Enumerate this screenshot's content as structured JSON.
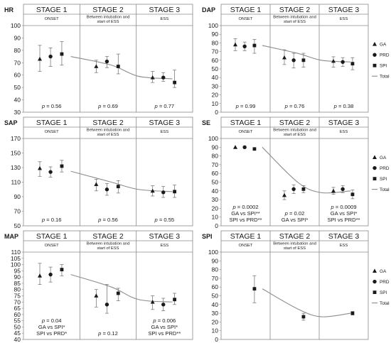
{
  "colors": {
    "marker": "#1a1a1a",
    "total_line": "#8c8c8c",
    "frame": "#8a8a8a",
    "error_bar": "#6a6a6a"
  },
  "stage_labels": [
    "STAGE 1",
    "STAGE 2",
    "STAGE 3"
  ],
  "stage_sublabels": [
    "ONSET",
    "Between intubation and start of ESS",
    "ESS"
  ],
  "legend_items": [
    {
      "marker": "triangle",
      "label": "GA"
    },
    {
      "marker": "circle",
      "label": "PRD"
    },
    {
      "marker": "square",
      "label": "SPI"
    },
    {
      "marker": "line",
      "label": "Total"
    }
  ],
  "chart_data": [
    {
      "id": "HR",
      "type": "line",
      "ylabel": "HR",
      "ylim": [
        30,
        100
      ],
      "yticks": [
        30,
        40,
        50,
        60,
        70,
        80,
        90,
        100
      ],
      "categories": [
        "STAGE 1",
        "STAGE 2",
        "STAGE 3"
      ],
      "series": [
        {
          "name": "GA",
          "marker": "triangle",
          "values": [
            73,
            67,
            58
          ],
          "err_low": [
            63,
            62,
            54
          ],
          "err_high": [
            84,
            72,
            63
          ]
        },
        {
          "name": "PRD",
          "marker": "circle",
          "values": [
            75,
            71,
            58
          ],
          "err_low": [
            67,
            66,
            55
          ],
          "err_high": [
            82,
            75,
            62
          ]
        },
        {
          "name": "SPI",
          "marker": "square",
          "values": [
            77,
            67,
            54
          ],
          "err_low": [
            68,
            61,
            50
          ],
          "err_high": [
            87,
            77,
            64
          ]
        }
      ],
      "total": [
        75,
        68,
        59,
        57
      ],
      "pvalues": [
        [
          "p = 0.56"
        ],
        [
          "p = 0.69"
        ],
        [
          "p = 0.77"
        ]
      ],
      "show_legend": false
    },
    {
      "id": "DAP",
      "type": "line",
      "ylabel": "DAP",
      "ylim": [
        0,
        100
      ],
      "yticks": [
        0,
        10,
        20,
        30,
        40,
        50,
        60,
        70,
        80,
        90,
        100
      ],
      "categories": [
        "STAGE 1",
        "STAGE 2",
        "STAGE 3"
      ],
      "series": [
        {
          "name": "GA",
          "marker": "triangle",
          "values": [
            78,
            63,
            59
          ],
          "err_low": [
            71,
            55,
            52
          ],
          "err_high": [
            85,
            72,
            64
          ]
        },
        {
          "name": "PRD",
          "marker": "circle",
          "values": [
            76,
            60,
            58
          ],
          "err_low": [
            71,
            51,
            53
          ],
          "err_high": [
            81,
            68,
            63
          ]
        },
        {
          "name": "SPI",
          "marker": "square",
          "values": [
            77,
            60,
            56
          ],
          "err_low": [
            68,
            52,
            49
          ],
          "err_high": [
            84,
            68,
            63
          ]
        }
      ],
      "total": [
        77,
        68,
        60,
        58
      ],
      "pvalues": [
        [
          "p = 0.99"
        ],
        [
          "p = 0.76"
        ],
        [
          "p = 0.38"
        ]
      ],
      "show_legend": true
    },
    {
      "id": "SAP",
      "type": "line",
      "ylabel": "SAP",
      "ylim": [
        50,
        170
      ],
      "yticks": [
        50,
        70,
        90,
        110,
        130,
        150,
        170
      ],
      "categories": [
        "STAGE 1",
        "STAGE 2",
        "STAGE 3"
      ],
      "series": [
        {
          "name": "GA",
          "marker": "triangle",
          "values": [
            129,
            107,
            98
          ],
          "err_low": [
            118,
            98,
            91
          ],
          "err_high": [
            138,
            114,
            105
          ]
        },
        {
          "name": "PRD",
          "marker": "circle",
          "values": [
            124,
            100,
            96
          ],
          "err_low": [
            117,
            92,
            89
          ],
          "err_high": [
            131,
            108,
            104
          ]
        },
        {
          "name": "SPI",
          "marker": "square",
          "values": [
            132,
            104,
            97
          ],
          "err_low": [
            124,
            95,
            89
          ],
          "err_high": [
            140,
            112,
            106
          ]
        }
      ],
      "total": [
        125,
        110,
        100,
        97
      ],
      "pvalues": [
        [
          "p = 0.16"
        ],
        [
          "p = 0.56"
        ],
        [
          "p = 0.55"
        ]
      ],
      "show_legend": false
    },
    {
      "id": "SE",
      "type": "line",
      "ylabel": "SE",
      "ylim": [
        0,
        100
      ],
      "yticks": [
        0,
        10,
        20,
        30,
        40,
        50,
        60,
        70,
        80,
        90,
        100
      ],
      "categories": [
        "STAGE 1",
        "STAGE 2",
        "STAGE 3"
      ],
      "series": [
        {
          "name": "GA",
          "marker": "triangle",
          "values": [
            90,
            35,
            40
          ],
          "err_low": [
            90,
            30,
            36
          ],
          "err_high": [
            90,
            40,
            44
          ]
        },
        {
          "name": "PRD",
          "marker": "circle",
          "values": [
            90,
            42,
            42
          ],
          "err_low": [
            90,
            37,
            38
          ],
          "err_high": [
            90,
            47,
            46
          ]
        },
        {
          "name": "SPI",
          "marker": "square",
          "values": [
            88,
            42,
            36
          ],
          "err_low": [
            88,
            38,
            31
          ],
          "err_high": [
            88,
            46,
            41
          ]
        }
      ],
      "total": [
        90,
        50,
        38,
        40
      ],
      "pvalues": [
        [
          "p = 0.0002",
          "GA vs SPI**",
          "SPI vs PRD**"
        ],
        [
          "p = 0.02",
          "GA vs SPI*"
        ],
        [
          "p = 0.0009",
          "GA vs SPI*",
          "SPI vs PRD**"
        ]
      ],
      "show_legend": true
    },
    {
      "id": "MAP",
      "type": "line",
      "ylabel": "MAP",
      "ylim": [
        40,
        110
      ],
      "yticks": [
        40,
        45,
        50,
        55,
        60,
        65,
        70,
        75,
        80,
        85,
        90,
        95,
        100,
        105,
        110
      ],
      "categories": [
        "STAGE 1",
        "STAGE 2",
        "STAGE 3"
      ],
      "series": [
        {
          "name": "GA",
          "marker": "triangle",
          "values": [
            91,
            75,
            70
          ],
          "err_low": [
            84,
            66,
            64
          ],
          "err_high": [
            101,
            80,
            75
          ]
        },
        {
          "name": "PRD",
          "marker": "circle",
          "values": [
            92,
            68,
            68
          ],
          "err_low": [
            86,
            61,
            63
          ],
          "err_high": [
            98,
            84,
            73
          ]
        },
        {
          "name": "SPI",
          "marker": "square",
          "values": [
            96,
            77,
            72
          ],
          "err_low": [
            91,
            71,
            68
          ],
          "err_high": [
            100,
            81,
            77
          ]
        }
      ],
      "total": [
        92,
        82,
        72,
        70
      ],
      "pvalues": [
        [
          "p = 0.04",
          "GA vs SPI*",
          "SPI vs PRD*"
        ],
        [
          "p = 0.12"
        ],
        [
          "p = 0.006",
          "GA vs SPI*",
          "SPI vs PRD**"
        ]
      ],
      "show_legend": false
    },
    {
      "id": "SPI",
      "type": "line",
      "ylabel": "SPI",
      "ylim": [
        0,
        100
      ],
      "yticks": [
        0,
        10,
        20,
        30,
        40,
        50,
        60,
        70,
        80,
        90,
        100
      ],
      "categories": [
        "STAGE 1",
        "STAGE 2",
        "STAGE 3"
      ],
      "series": [
        {
          "name": "SPI",
          "marker": "square",
          "values": [
            58,
            26,
            30
          ],
          "err_low": [
            42,
            22,
            28
          ],
          "err_high": [
            73,
            30,
            32
          ]
        }
      ],
      "total": [
        58,
        35,
        26,
        30
      ],
      "pvalues": [
        [],
        [],
        []
      ],
      "show_legend": true
    }
  ]
}
